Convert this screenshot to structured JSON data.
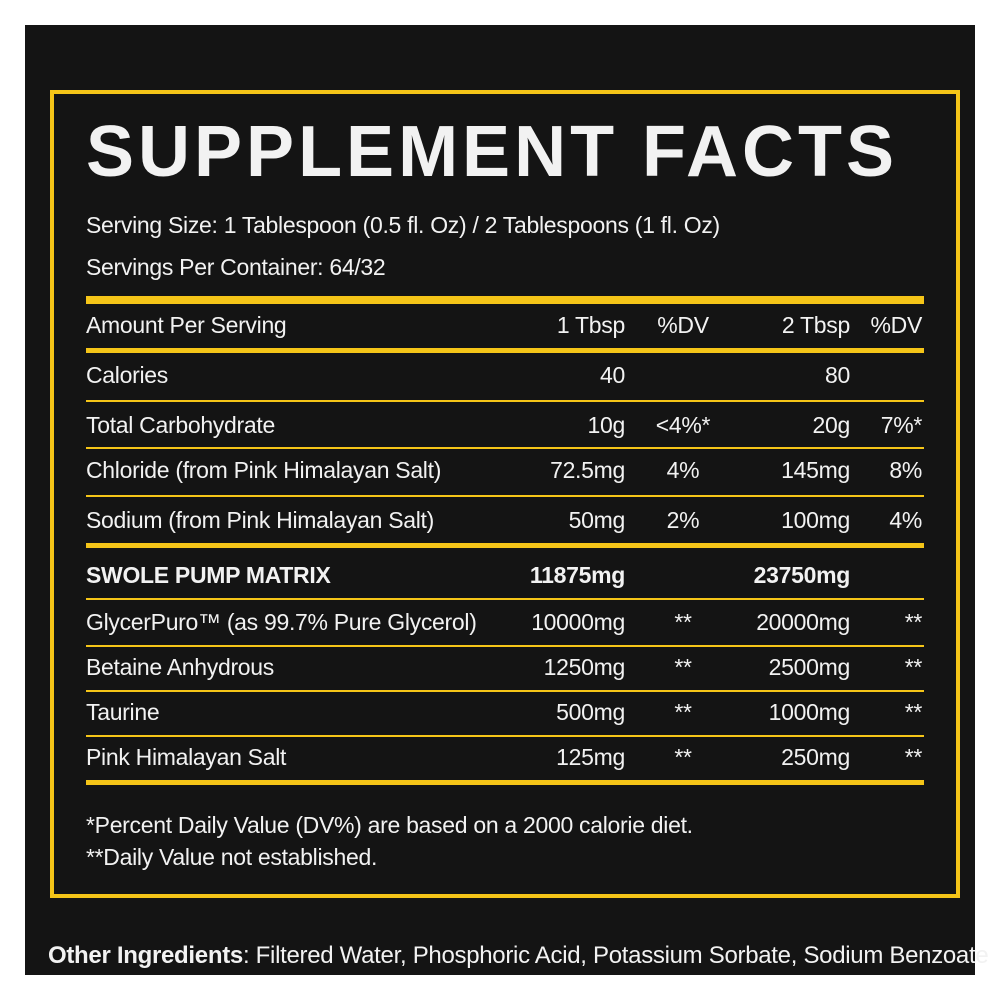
{
  "title": "SUPPLEMENT FACTS",
  "serving_size": "Serving Size: 1 Tablespoon (0.5 fl. Oz) / 2 Tablespoons (1 fl. Oz)",
  "servings_per_container": "Servings Per Container: 64/32",
  "table": {
    "header": [
      "Amount Per Serving",
      "1 Tbsp",
      "%DV",
      "2 Tbsp",
      "%DV"
    ],
    "rows": [
      {
        "name": "Calories",
        "tbsp1": "40",
        "tbsp2": "80"
      },
      {
        "name": "Total Carbohydrate",
        "tbsp1": "10g",
        "dv1": "<4%*",
        "tbsp2": "20g",
        "dv2": "7%*"
      },
      {
        "name": "Chloride (from Pink Himalayan Salt)",
        "tbsp1": "72.5mg",
        "dv1": "4%",
        "tbsp2": "145mg",
        "dv2": "8%"
      },
      {
        "name": "Sodium (from Pink Himalayan Salt)",
        "tbsp1": "50mg",
        "dv1": "2%",
        "tbsp2": "100mg",
        "dv2": "4%"
      },
      {
        "name": "SWOLE PUMP MATRIX",
        "tbsp1": "11875mg",
        "tbsp2": "23750mg"
      },
      {
        "name": "GlycerPuro™ (as 99.7% Pure Glycerol)",
        "tbsp1": "10000mg",
        "dv1": "**",
        "tbsp2": "20000mg",
        "dv2": "**"
      },
      {
        "name": "Betaine Anhydrous",
        "tbsp1": "1250mg",
        "dv1": "**",
        "tbsp2": "2500mg",
        "dv2": "**"
      },
      {
        "name": "Taurine",
        "tbsp1": "500mg",
        "dv1": "**",
        "tbsp2": "1000mg",
        "dv2": "**"
      },
      {
        "name": "Pink Himalayan Salt",
        "tbsp1": "125mg",
        "dv1": "**",
        "tbsp2": "250mg",
        "dv2": "**"
      }
    ]
  },
  "footnotes": [
    "*Percent Daily Value (DV%) are based on a 2000 calorie diet.",
    "**Daily Value not established."
  ],
  "other_ingredients": {
    "label": "Other Ingredients",
    "text": ": Filtered Water, Phosphoric Acid, Potassium Sorbate, Sodium Benzoate"
  }
}
